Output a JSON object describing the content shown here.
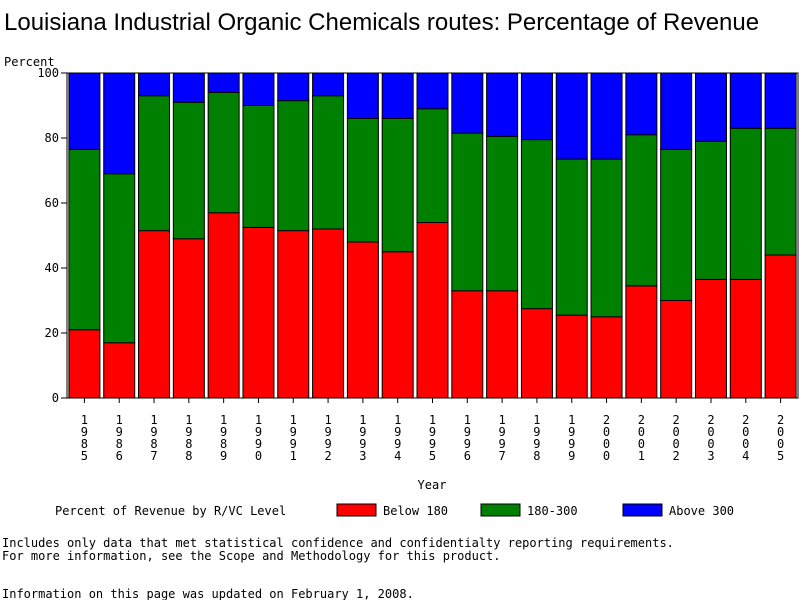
{
  "chart_data": {
    "type": "bar",
    "stacked": true,
    "title": "Louisiana Industrial Organic Chemicals routes: Percentage of Revenue",
    "ylabel": "Percent",
    "xlabel": "Year",
    "ylim": [
      0,
      100
    ],
    "yticks": [
      "0",
      "20",
      "40",
      "60",
      "80",
      "100"
    ],
    "categories": [
      "1985",
      "1986",
      "1987",
      "1988",
      "1989",
      "1990",
      "1991",
      "1992",
      "1993",
      "1994",
      "1995",
      "1996",
      "1997",
      "1998",
      "1999",
      "2000",
      "2001",
      "2002",
      "2003",
      "2004",
      "2005"
    ],
    "series": [
      {
        "name": "Below 180",
        "color": "#ff0000",
        "values": [
          21,
          17,
          51.5,
          49,
          57,
          52.5,
          51.5,
          52,
          48,
          45,
          54,
          33,
          33,
          27.5,
          25.5,
          25,
          34.5,
          30,
          36.5,
          36.5,
          44
        ]
      },
      {
        "name": "180-300",
        "color": "#008000",
        "values": [
          55.5,
          52,
          41.5,
          42,
          37,
          37.5,
          40,
          41,
          38,
          41,
          35,
          48.5,
          47.5,
          52,
          48,
          48.5,
          46.5,
          46.5,
          42.5,
          46.5,
          39
        ]
      },
      {
        "name": "Above 300",
        "color": "#0000ff",
        "values": [
          23.5,
          31,
          7,
          9,
          6,
          10,
          8.5,
          7,
          14,
          14,
          11,
          18.5,
          19.5,
          20.5,
          26.5,
          26.5,
          19,
          23.5,
          21,
          17,
          17
        ]
      }
    ],
    "legend": {
      "title": "Percent of Revenue by R/VC Level",
      "position": "bottom"
    },
    "grid": false
  },
  "footnotes": {
    "line1": "Includes only data that met statistical confidence and confidentialty reporting requirements.",
    "line2": "For more information, see the Scope and Methodology for this product.",
    "updated": "Information on this page was updated on February 1, 2008."
  }
}
